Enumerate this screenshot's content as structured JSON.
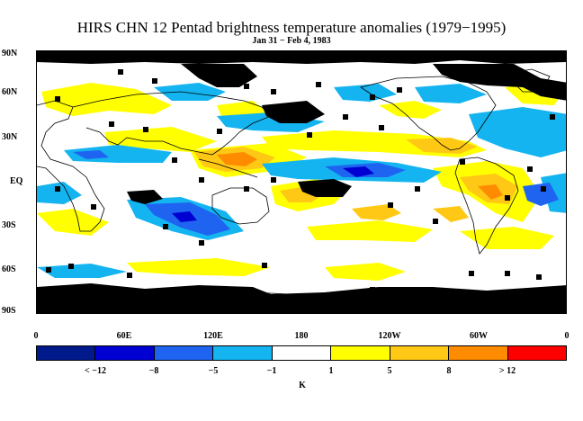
{
  "title": "HIRS CHN 12 Pentad brightness temperature anomalies (1979−1995)",
  "subtitle": "Jan 31 − Feb 4, 1983",
  "lat_labels": [
    "90N",
    "60N",
    "30N",
    "EQ",
    "30S",
    "60S",
    "90S"
  ],
  "lon_labels": [
    "0",
    "60E",
    "120E",
    "180",
    "120W",
    "60W",
    "0"
  ],
  "colorbar": {
    "colors": [
      "#001a8c",
      "#0000d2",
      "#1e64f0",
      "#14b4f0",
      "#ffffff",
      "#ffff00",
      "#ffc814",
      "#ff8c00",
      "#ff0000"
    ],
    "labels": [
      "< −12",
      "−8",
      "−5",
      "−1",
      "1",
      "5",
      "8",
      "> 12"
    ],
    "unit": "K"
  },
  "palette": {
    "missing": "#000000",
    "coast": "#000000"
  }
}
